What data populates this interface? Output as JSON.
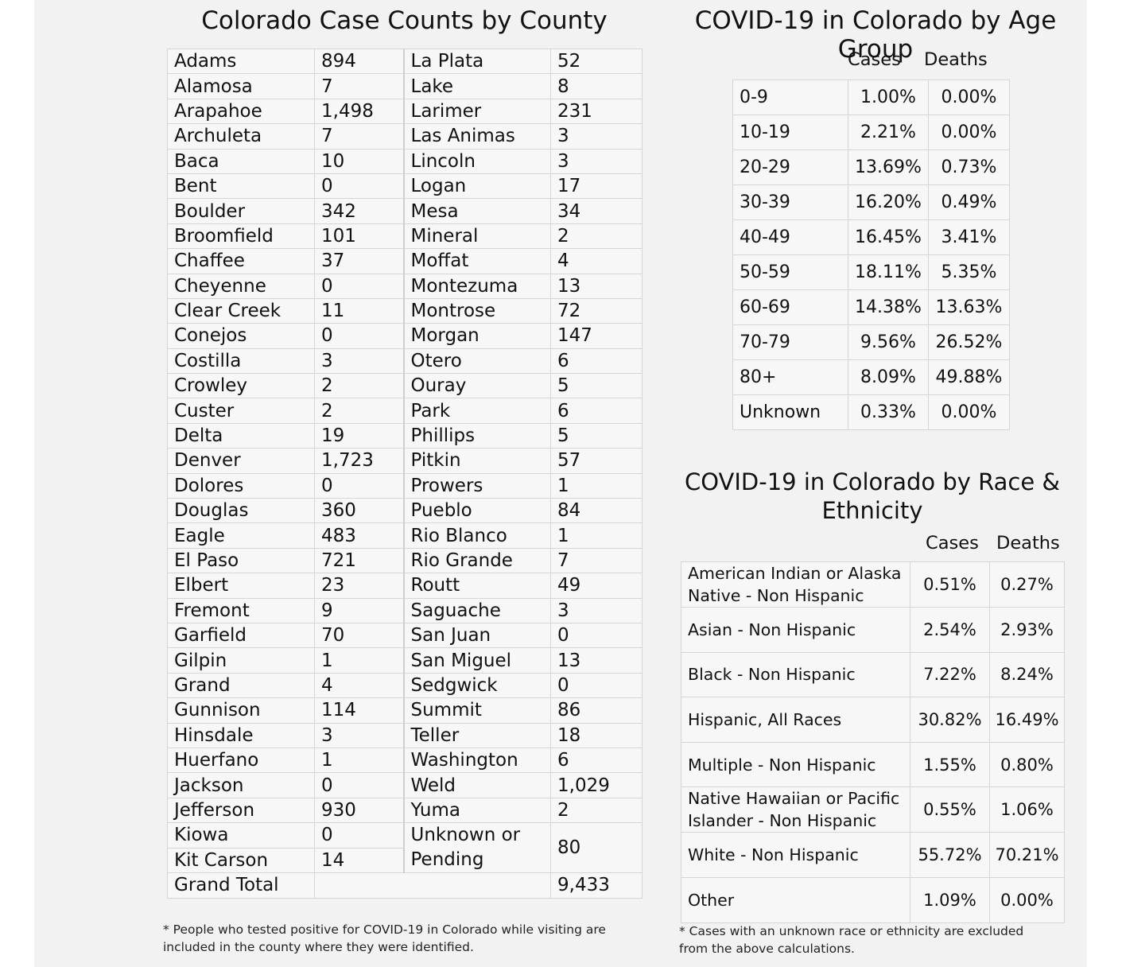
{
  "county_section": {
    "title": "Colorado Case Counts by County",
    "left_column": [
      {
        "county": "Adams",
        "count": "894"
      },
      {
        "county": "Alamosa",
        "count": "7"
      },
      {
        "county": "Arapahoe",
        "count": "1,498"
      },
      {
        "county": "Archuleta",
        "count": "7"
      },
      {
        "county": "Baca",
        "count": "10"
      },
      {
        "county": "Bent",
        "count": "0"
      },
      {
        "county": "Boulder",
        "count": "342"
      },
      {
        "county": "Broomfield",
        "count": "101"
      },
      {
        "county": "Chaffee",
        "count": "37"
      },
      {
        "county": "Cheyenne",
        "count": "0"
      },
      {
        "county": "Clear Creek",
        "count": "11"
      },
      {
        "county": "Conejos",
        "count": "0"
      },
      {
        "county": "Costilla",
        "count": "3"
      },
      {
        "county": "Crowley",
        "count": "2"
      },
      {
        "county": "Custer",
        "count": "2"
      },
      {
        "county": "Delta",
        "count": "19"
      },
      {
        "county": "Denver",
        "count": "1,723"
      },
      {
        "county": "Dolores",
        "count": "0"
      },
      {
        "county": "Douglas",
        "count": "360"
      },
      {
        "county": "Eagle",
        "count": "483"
      },
      {
        "county": "El Paso",
        "count": "721"
      },
      {
        "county": "Elbert",
        "count": "23"
      },
      {
        "county": "Fremont",
        "count": "9"
      },
      {
        "county": "Garfield",
        "count": "70"
      },
      {
        "county": "Gilpin",
        "count": "1"
      },
      {
        "county": "Grand",
        "count": "4"
      },
      {
        "county": "Gunnison",
        "count": "114"
      },
      {
        "county": "Hinsdale",
        "count": "3"
      },
      {
        "county": "Huerfano",
        "count": "1"
      },
      {
        "county": "Jackson",
        "count": "0"
      },
      {
        "county": "Jefferson",
        "count": "930"
      },
      {
        "county": "Kiowa",
        "count": "0"
      },
      {
        "county": "Kit Carson",
        "count": "14"
      }
    ],
    "right_column": [
      {
        "county": "La Plata",
        "count": "52"
      },
      {
        "county": "Lake",
        "count": "8"
      },
      {
        "county": "Larimer",
        "count": "231"
      },
      {
        "county": "Las Animas",
        "count": "3"
      },
      {
        "county": "Lincoln",
        "count": "3"
      },
      {
        "county": "Logan",
        "count": "17"
      },
      {
        "county": "Mesa",
        "count": "34"
      },
      {
        "county": "Mineral",
        "count": "2"
      },
      {
        "county": "Moffat",
        "count": "4"
      },
      {
        "county": "Montezuma",
        "count": "13"
      },
      {
        "county": "Montrose",
        "count": "72"
      },
      {
        "county": "Morgan",
        "count": "147"
      },
      {
        "county": "Otero",
        "count": "6"
      },
      {
        "county": "Ouray",
        "count": "5"
      },
      {
        "county": "Park",
        "count": "6"
      },
      {
        "county": "Phillips",
        "count": "5"
      },
      {
        "county": "Pitkin",
        "count": "57"
      },
      {
        "county": "Prowers",
        "count": "1"
      },
      {
        "county": "Pueblo",
        "count": "84"
      },
      {
        "county": "Rio Blanco",
        "count": "1"
      },
      {
        "county": "Rio Grande",
        "count": "7"
      },
      {
        "county": "Routt",
        "count": "49"
      },
      {
        "county": "Saguache",
        "count": "3"
      },
      {
        "county": "San Juan",
        "count": "0"
      },
      {
        "county": "San Miguel",
        "count": "13"
      },
      {
        "county": "Sedgwick",
        "count": "0"
      },
      {
        "county": "Summit",
        "count": "86"
      },
      {
        "county": "Teller",
        "count": "18"
      },
      {
        "county": "Washington",
        "count": "6"
      },
      {
        "county": "Weld",
        "count": "1,029"
      },
      {
        "county": "Yuma",
        "count": "2"
      }
    ],
    "unknown": {
      "county_line1": "Unknown or",
      "county_line2": "Pending",
      "count": "80"
    },
    "total": {
      "label": "Grand Total",
      "count": "9,433"
    },
    "footnote": "* People who tested positive for COVID-19 in Colorado while visiting are included in the county where they were identified."
  },
  "age_section": {
    "title": "COVID-19 in Colorado by Age Group",
    "headers": {
      "cases": "Cases",
      "deaths": "Deaths"
    },
    "rows": [
      {
        "group": "0-9",
        "cases": "1.00%",
        "deaths": "0.00%"
      },
      {
        "group": "10-19",
        "cases": "2.21%",
        "deaths": "0.00%"
      },
      {
        "group": "20-29",
        "cases": "13.69%",
        "deaths": "0.73%"
      },
      {
        "group": "30-39",
        "cases": "16.20%",
        "deaths": "0.49%"
      },
      {
        "group": "40-49",
        "cases": "16.45%",
        "deaths": "3.41%"
      },
      {
        "group": "50-59",
        "cases": "18.11%",
        "deaths": "5.35%"
      },
      {
        "group": "60-69",
        "cases": "14.38%",
        "deaths": "13.63%"
      },
      {
        "group": "70-79",
        "cases": "9.56%",
        "deaths": "26.52%"
      },
      {
        "group": "80+",
        "cases": "8.09%",
        "deaths": "49.88%"
      },
      {
        "group": "Unknown",
        "cases": "0.33%",
        "deaths": "0.00%"
      }
    ]
  },
  "race_section": {
    "title_line1": "COVID-19 in Colorado by Race &",
    "title_line2": "Ethnicity",
    "headers": {
      "cases": "Cases",
      "deaths": "Deaths"
    },
    "rows": [
      {
        "group": "American Indian or Alaska Native - Non Hispanic",
        "cases": "0.51%",
        "deaths": "0.27%"
      },
      {
        "group": "Asian - Non Hispanic",
        "cases": "2.54%",
        "deaths": "2.93%"
      },
      {
        "group": "Black - Non Hispanic",
        "cases": "7.22%",
        "deaths": "8.24%"
      },
      {
        "group": "Hispanic, All Races",
        "cases": "30.82%",
        "deaths": "16.49%"
      },
      {
        "group": "Multiple - Non Hispanic",
        "cases": "1.55%",
        "deaths": "0.80%"
      },
      {
        "group": "Native Hawaiian or Pacific Islander - Non Hispanic",
        "cases": "0.55%",
        "deaths": "1.06%"
      },
      {
        "group": "White - Non Hispanic",
        "cases": "55.72%",
        "deaths": "70.21%"
      },
      {
        "group": "Other",
        "cases": "1.09%",
        "deaths": "0.00%"
      }
    ],
    "footnote": "* Cases with an unknown race or ethnicity are excluded from the above calculations."
  }
}
